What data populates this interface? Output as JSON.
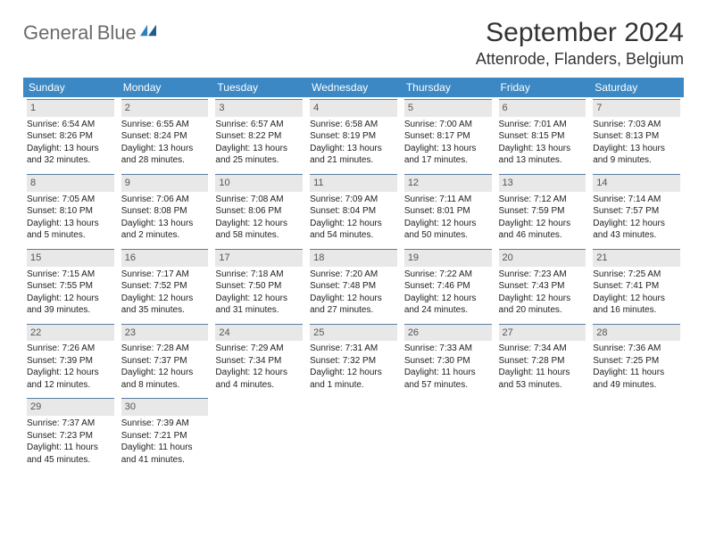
{
  "header": {
    "logo_general": "General",
    "logo_blue": "Blue",
    "month_title": "September 2024",
    "location": "Attenrode, Flanders, Belgium"
  },
  "colors": {
    "header_bg": "#3b88c4",
    "daynum_bg": "#e8e8e8",
    "accent": "#2f7fb8",
    "row_divider": "#5a7ca0"
  },
  "weekdays": [
    "Sunday",
    "Monday",
    "Tuesday",
    "Wednesday",
    "Thursday",
    "Friday",
    "Saturday"
  ],
  "weeks": [
    [
      {
        "day": "1",
        "sunrise": "Sunrise: 6:54 AM",
        "sunset": "Sunset: 8:26 PM",
        "daylight": "Daylight: 13 hours and 32 minutes."
      },
      {
        "day": "2",
        "sunrise": "Sunrise: 6:55 AM",
        "sunset": "Sunset: 8:24 PM",
        "daylight": "Daylight: 13 hours and 28 minutes."
      },
      {
        "day": "3",
        "sunrise": "Sunrise: 6:57 AM",
        "sunset": "Sunset: 8:22 PM",
        "daylight": "Daylight: 13 hours and 25 minutes."
      },
      {
        "day": "4",
        "sunrise": "Sunrise: 6:58 AM",
        "sunset": "Sunset: 8:19 PM",
        "daylight": "Daylight: 13 hours and 21 minutes."
      },
      {
        "day": "5",
        "sunrise": "Sunrise: 7:00 AM",
        "sunset": "Sunset: 8:17 PM",
        "daylight": "Daylight: 13 hours and 17 minutes."
      },
      {
        "day": "6",
        "sunrise": "Sunrise: 7:01 AM",
        "sunset": "Sunset: 8:15 PM",
        "daylight": "Daylight: 13 hours and 13 minutes."
      },
      {
        "day": "7",
        "sunrise": "Sunrise: 7:03 AM",
        "sunset": "Sunset: 8:13 PM",
        "daylight": "Daylight: 13 hours and 9 minutes."
      }
    ],
    [
      {
        "day": "8",
        "sunrise": "Sunrise: 7:05 AM",
        "sunset": "Sunset: 8:10 PM",
        "daylight": "Daylight: 13 hours and 5 minutes."
      },
      {
        "day": "9",
        "sunrise": "Sunrise: 7:06 AM",
        "sunset": "Sunset: 8:08 PM",
        "daylight": "Daylight: 13 hours and 2 minutes."
      },
      {
        "day": "10",
        "sunrise": "Sunrise: 7:08 AM",
        "sunset": "Sunset: 8:06 PM",
        "daylight": "Daylight: 12 hours and 58 minutes."
      },
      {
        "day": "11",
        "sunrise": "Sunrise: 7:09 AM",
        "sunset": "Sunset: 8:04 PM",
        "daylight": "Daylight: 12 hours and 54 minutes."
      },
      {
        "day": "12",
        "sunrise": "Sunrise: 7:11 AM",
        "sunset": "Sunset: 8:01 PM",
        "daylight": "Daylight: 12 hours and 50 minutes."
      },
      {
        "day": "13",
        "sunrise": "Sunrise: 7:12 AM",
        "sunset": "Sunset: 7:59 PM",
        "daylight": "Daylight: 12 hours and 46 minutes."
      },
      {
        "day": "14",
        "sunrise": "Sunrise: 7:14 AM",
        "sunset": "Sunset: 7:57 PM",
        "daylight": "Daylight: 12 hours and 43 minutes."
      }
    ],
    [
      {
        "day": "15",
        "sunrise": "Sunrise: 7:15 AM",
        "sunset": "Sunset: 7:55 PM",
        "daylight": "Daylight: 12 hours and 39 minutes."
      },
      {
        "day": "16",
        "sunrise": "Sunrise: 7:17 AM",
        "sunset": "Sunset: 7:52 PM",
        "daylight": "Daylight: 12 hours and 35 minutes."
      },
      {
        "day": "17",
        "sunrise": "Sunrise: 7:18 AM",
        "sunset": "Sunset: 7:50 PM",
        "daylight": "Daylight: 12 hours and 31 minutes."
      },
      {
        "day": "18",
        "sunrise": "Sunrise: 7:20 AM",
        "sunset": "Sunset: 7:48 PM",
        "daylight": "Daylight: 12 hours and 27 minutes."
      },
      {
        "day": "19",
        "sunrise": "Sunrise: 7:22 AM",
        "sunset": "Sunset: 7:46 PM",
        "daylight": "Daylight: 12 hours and 24 minutes."
      },
      {
        "day": "20",
        "sunrise": "Sunrise: 7:23 AM",
        "sunset": "Sunset: 7:43 PM",
        "daylight": "Daylight: 12 hours and 20 minutes."
      },
      {
        "day": "21",
        "sunrise": "Sunrise: 7:25 AM",
        "sunset": "Sunset: 7:41 PM",
        "daylight": "Daylight: 12 hours and 16 minutes."
      }
    ],
    [
      {
        "day": "22",
        "sunrise": "Sunrise: 7:26 AM",
        "sunset": "Sunset: 7:39 PM",
        "daylight": "Daylight: 12 hours and 12 minutes."
      },
      {
        "day": "23",
        "sunrise": "Sunrise: 7:28 AM",
        "sunset": "Sunset: 7:37 PM",
        "daylight": "Daylight: 12 hours and 8 minutes."
      },
      {
        "day": "24",
        "sunrise": "Sunrise: 7:29 AM",
        "sunset": "Sunset: 7:34 PM",
        "daylight": "Daylight: 12 hours and 4 minutes."
      },
      {
        "day": "25",
        "sunrise": "Sunrise: 7:31 AM",
        "sunset": "Sunset: 7:32 PM",
        "daylight": "Daylight: 12 hours and 1 minute."
      },
      {
        "day": "26",
        "sunrise": "Sunrise: 7:33 AM",
        "sunset": "Sunset: 7:30 PM",
        "daylight": "Daylight: 11 hours and 57 minutes."
      },
      {
        "day": "27",
        "sunrise": "Sunrise: 7:34 AM",
        "sunset": "Sunset: 7:28 PM",
        "daylight": "Daylight: 11 hours and 53 minutes."
      },
      {
        "day": "28",
        "sunrise": "Sunrise: 7:36 AM",
        "sunset": "Sunset: 7:25 PM",
        "daylight": "Daylight: 11 hours and 49 minutes."
      }
    ],
    [
      {
        "day": "29",
        "sunrise": "Sunrise: 7:37 AM",
        "sunset": "Sunset: 7:23 PM",
        "daylight": "Daylight: 11 hours and 45 minutes."
      },
      {
        "day": "30",
        "sunrise": "Sunrise: 7:39 AM",
        "sunset": "Sunset: 7:21 PM",
        "daylight": "Daylight: 11 hours and 41 minutes."
      },
      null,
      null,
      null,
      null,
      null
    ]
  ]
}
